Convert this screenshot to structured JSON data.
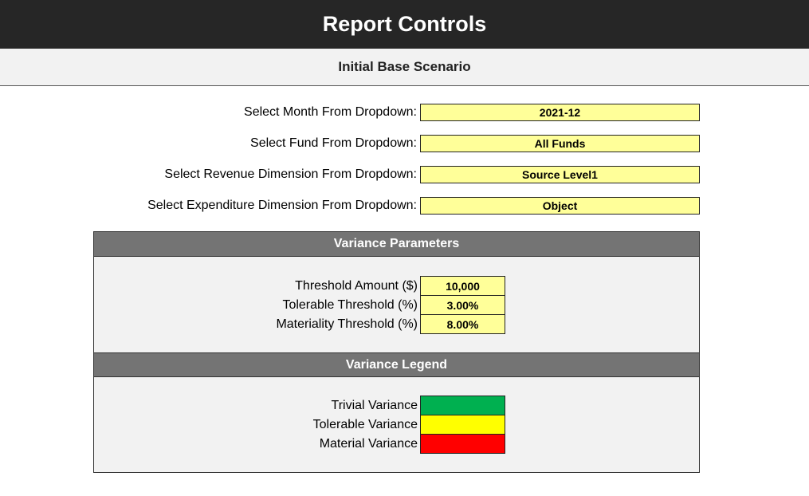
{
  "header": {
    "title": "Report Controls",
    "subtitle": "Initial Base Scenario"
  },
  "dropdowns": [
    {
      "label": "Select Month From Dropdown:",
      "value": "2021-12"
    },
    {
      "label": "Select Fund From Dropdown:",
      "value": "All Funds"
    },
    {
      "label": "Select Revenue Dimension From Dropdown:",
      "value": "Source Level1"
    },
    {
      "label": "Select Expenditure Dimension From Dropdown:",
      "value": "Object"
    }
  ],
  "parameters": {
    "title": "Variance Parameters",
    "rows": [
      {
        "label": "Threshold Amount ($)",
        "value": "10,000"
      },
      {
        "label": "Tolerable Threshold (%)",
        "value": "3.00%"
      },
      {
        "label": "Materiality Threshold (%)",
        "value": "8.00%"
      }
    ]
  },
  "legend": {
    "title": "Variance Legend",
    "rows": [
      {
        "label": "Trivial Variance",
        "color": "#00b050"
      },
      {
        "label": "Tolerable Variance",
        "color": "#ffff00"
      },
      {
        "label": "Material Variance",
        "color": "#ff0000"
      }
    ]
  }
}
